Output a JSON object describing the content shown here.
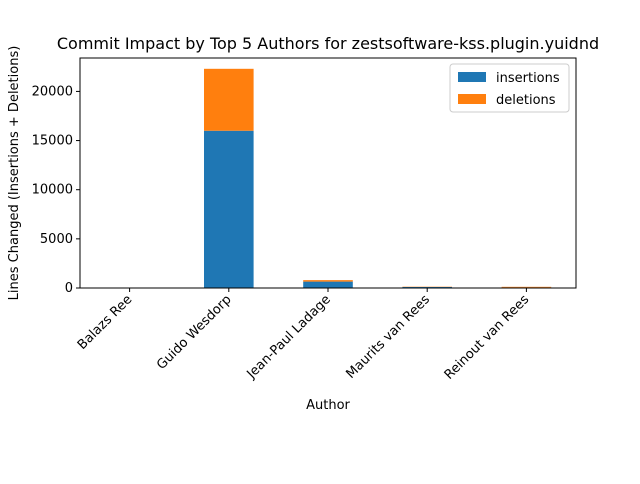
{
  "chart_data": {
    "type": "bar",
    "stacked": true,
    "title": "Commit Impact by Top 5 Authors for zestsoftware-kss.plugin.yuidnd",
    "xlabel": "Author",
    "ylabel": "Lines Changed (Insertions + Deletions)",
    "categories": [
      "Balazs Ree",
      "Guido Wesdorp",
      "Jean-Paul Ladage",
      "Maurits van Rees",
      "Reinout van Rees"
    ],
    "series": [
      {
        "name": "insertions",
        "color": "#1f77b4",
        "values": [
          10,
          16000,
          650,
          100,
          60
        ]
      },
      {
        "name": "deletions",
        "color": "#ff7f0e",
        "values": [
          5,
          6300,
          150,
          30,
          60
        ]
      }
    ],
    "ylim": [
      0,
      23400
    ],
    "yticks": [
      0,
      5000,
      10000,
      15000,
      20000
    ],
    "ytick_labels": [
      "0",
      "5000",
      "10000",
      "15000",
      "20000"
    ],
    "grid": false,
    "legend_position": "upper right"
  }
}
